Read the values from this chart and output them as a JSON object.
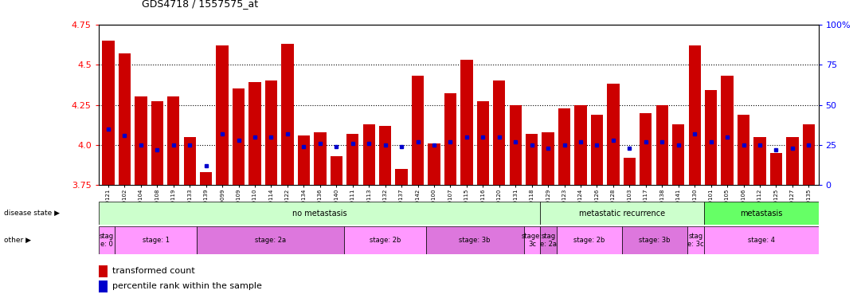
{
  "title": "GDS4718 / 1557575_at",
  "samples": [
    "GSM549121",
    "GSM549102",
    "GSM549104",
    "GSM549108",
    "GSM549119",
    "GSM549133",
    "GSM549139",
    "GSM549099",
    "GSM549109",
    "GSM549110",
    "GSM549114",
    "GSM549122",
    "GSM549134",
    "GSM549136",
    "GSM549140",
    "GSM549111",
    "GSM549113",
    "GSM549132",
    "GSM549137",
    "GSM549142",
    "GSM549100",
    "GSM549107",
    "GSM549115",
    "GSM549116",
    "GSM549120",
    "GSM549131",
    "GSM549118",
    "GSM549129",
    "GSM549123",
    "GSM549124",
    "GSM549126",
    "GSM549128",
    "GSM549103",
    "GSM549117",
    "GSM549138",
    "GSM549141",
    "GSM549130",
    "GSM549101",
    "GSM549105",
    "GSM549106",
    "GSM549112",
    "GSM549125",
    "GSM549127",
    "GSM549135"
  ],
  "transformed_count": [
    4.65,
    4.57,
    4.3,
    4.27,
    4.3,
    4.05,
    3.83,
    4.62,
    4.35,
    4.39,
    4.4,
    4.63,
    4.06,
    4.08,
    3.93,
    4.07,
    4.13,
    4.12,
    3.85,
    4.43,
    4.01,
    4.32,
    4.53,
    4.27,
    4.4,
    4.25,
    4.07,
    4.08,
    4.23,
    4.25,
    4.19,
    4.38,
    3.92,
    4.2,
    4.25,
    4.13,
    4.62,
    4.34,
    4.43,
    4.19,
    4.05,
    3.95,
    4.05,
    4.13
  ],
  "percentile_rank": [
    4.1,
    4.06,
    4.0,
    3.97,
    4.0,
    4.0,
    3.87,
    4.07,
    4.03,
    4.05,
    4.05,
    4.07,
    3.99,
    4.01,
    3.99,
    4.01,
    4.01,
    4.0,
    3.99,
    4.02,
    4.0,
    4.02,
    4.05,
    4.05,
    4.05,
    4.02,
    4.0,
    3.98,
    4.0,
    4.02,
    4.0,
    4.03,
    3.98,
    4.02,
    4.02,
    4.0,
    4.07,
    4.02,
    4.05,
    4.0,
    4.0,
    3.97,
    3.98,
    4.0
  ],
  "ymin": 3.75,
  "ymax": 4.75,
  "bar_color": "#CC0000",
  "dot_color": "#0000CC",
  "disease_groups": [
    {
      "label": "no metastasis",
      "start": 0,
      "end": 27,
      "color": "#CCFFCC"
    },
    {
      "label": "metastatic recurrence",
      "start": 27,
      "end": 37,
      "color": "#CCFFCC"
    },
    {
      "label": "metastasis",
      "start": 37,
      "end": 44,
      "color": "#66FF66"
    }
  ],
  "stage_groups": [
    {
      "label": "stag\ne: 0",
      "start": 0,
      "end": 1,
      "color": "#FF99FF"
    },
    {
      "label": "stage: 1",
      "start": 1,
      "end": 6,
      "color": "#FF99FF"
    },
    {
      "label": "stage: 2a",
      "start": 6,
      "end": 15,
      "color": "#DD77DD"
    },
    {
      "label": "stage: 2b",
      "start": 15,
      "end": 20,
      "color": "#FF99FF"
    },
    {
      "label": "stage: 3b",
      "start": 20,
      "end": 26,
      "color": "#DD77DD"
    },
    {
      "label": "stage:\n3c",
      "start": 26,
      "end": 27,
      "color": "#FF99FF"
    },
    {
      "label": "stag\ne: 2a",
      "start": 27,
      "end": 28,
      "color": "#DD77DD"
    },
    {
      "label": "stage: 2b",
      "start": 28,
      "end": 32,
      "color": "#FF99FF"
    },
    {
      "label": "stage: 3b",
      "start": 32,
      "end": 36,
      "color": "#DD77DD"
    },
    {
      "label": "stag\ne: 3c",
      "start": 36,
      "end": 37,
      "color": "#FF99FF"
    },
    {
      "label": "stage: 4",
      "start": 37,
      "end": 44,
      "color": "#FF99FF"
    }
  ],
  "right_ytick_labels": [
    "100%",
    "75",
    "50",
    "25",
    "0"
  ],
  "right_ytick_pcts": [
    100,
    75,
    50,
    25,
    0
  ]
}
